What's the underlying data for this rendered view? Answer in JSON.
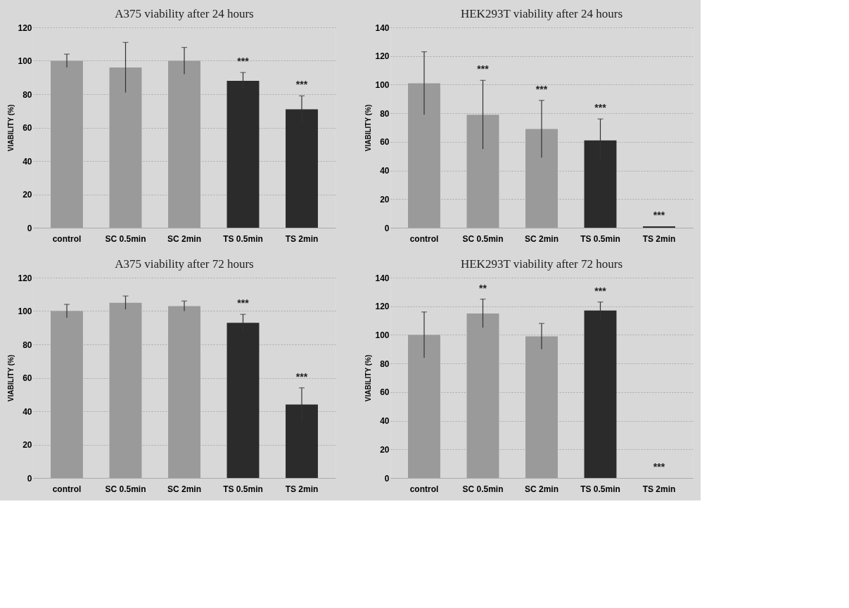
{
  "chart_data": [
    {
      "type": "bar",
      "title": "A375 viability after 24 hours",
      "ylabel": "VIABILITY (%)",
      "categories": [
        "control",
        "SC 0.5min",
        "SC 2min",
        "TS 0.5min",
        "TS 2min"
      ],
      "values": [
        100,
        96,
        100,
        88,
        71
      ],
      "errors": [
        4,
        15,
        8,
        5,
        8
      ],
      "colors": [
        "#9a9a9a",
        "#9a9a9a",
        "#9a9a9a",
        "#2b2b2b",
        "#2b2b2b"
      ],
      "ylim": [
        0,
        120
      ],
      "yticks": [
        0,
        20,
        40,
        60,
        80,
        100,
        120
      ],
      "grid": "y",
      "annotations": [
        {
          "text": "***",
          "x": "TS 0.5min",
          "y": 93
        },
        {
          "text": "***",
          "x": "TS 2min",
          "y": 79
        }
      ]
    },
    {
      "type": "bar",
      "title": "HEK293T  viability after 24 hours",
      "ylabel": "VIABILITY (%)",
      "categories": [
        "control",
        "SC 0.5min",
        "SC 2min",
        "TS 0.5min",
        "TS 2min"
      ],
      "values": [
        101,
        79,
        69,
        61,
        1
      ],
      "errors": [
        22,
        24,
        20,
        15,
        null
      ],
      "colors": [
        "#9a9a9a",
        "#9a9a9a",
        "#9a9a9a",
        "#2b2b2b",
        "#2b2b2b"
      ],
      "ylim": [
        0,
        140
      ],
      "yticks": [
        0,
        20,
        40,
        60,
        80,
        100,
        120,
        140
      ],
      "grid": "y",
      "annotations": [
        {
          "text": "***",
          "x": "SC 0.5min",
          "y": 103
        },
        {
          "text": "***",
          "x": "SC 2min",
          "y": 89
        },
        {
          "text": "***",
          "x": "TS 0.5min",
          "y": 76
        },
        {
          "text": "***",
          "x": "TS 2min",
          "y": 1
        }
      ]
    },
    {
      "type": "bar",
      "title": "A375 viability after 72 hours",
      "ylabel": "VIABILITY (%)",
      "categories": [
        "control",
        "SC 0.5min",
        "SC 2min",
        "TS 0.5min",
        "TS 2min"
      ],
      "values": [
        100,
        105,
        103,
        93,
        44
      ],
      "errors": [
        4,
        4,
        3,
        5,
        10
      ],
      "colors": [
        "#9a9a9a",
        "#9a9a9a",
        "#9a9a9a",
        "#2b2b2b",
        "#2b2b2b"
      ],
      "ylim": [
        0,
        120
      ],
      "yticks": [
        0,
        20,
        40,
        60,
        80,
        100,
        120
      ],
      "grid": "y",
      "annotations": [
        {
          "text": "***",
          "x": "TS 0.5min",
          "y": 98
        },
        {
          "text": "***",
          "x": "TS 2min",
          "y": 54
        }
      ]
    },
    {
      "type": "bar",
      "title": "HEK293T  viability after 72 hours",
      "ylabel": "VIABILITY (%)",
      "categories": [
        "control",
        "SC 0.5min",
        "SC 2min",
        "TS 0.5min",
        "TS 2min"
      ],
      "values": [
        100,
        115,
        99,
        117,
        0
      ],
      "errors": [
        16,
        10,
        9,
        6,
        null
      ],
      "colors": [
        "#9a9a9a",
        "#9a9a9a",
        "#9a9a9a",
        "#2b2b2b",
        "#2b2b2b"
      ],
      "ylim": [
        0,
        140
      ],
      "yticks": [
        0,
        20,
        40,
        60,
        80,
        100,
        120,
        140
      ],
      "grid": "y",
      "annotations": [
        {
          "text": "**",
          "x": "SC 0.5min",
          "y": 125
        },
        {
          "text": "***",
          "x": "TS 0.5min",
          "y": 123
        },
        {
          "text": "***",
          "x": "TS 2min",
          "y": 0
        }
      ]
    }
  ]
}
